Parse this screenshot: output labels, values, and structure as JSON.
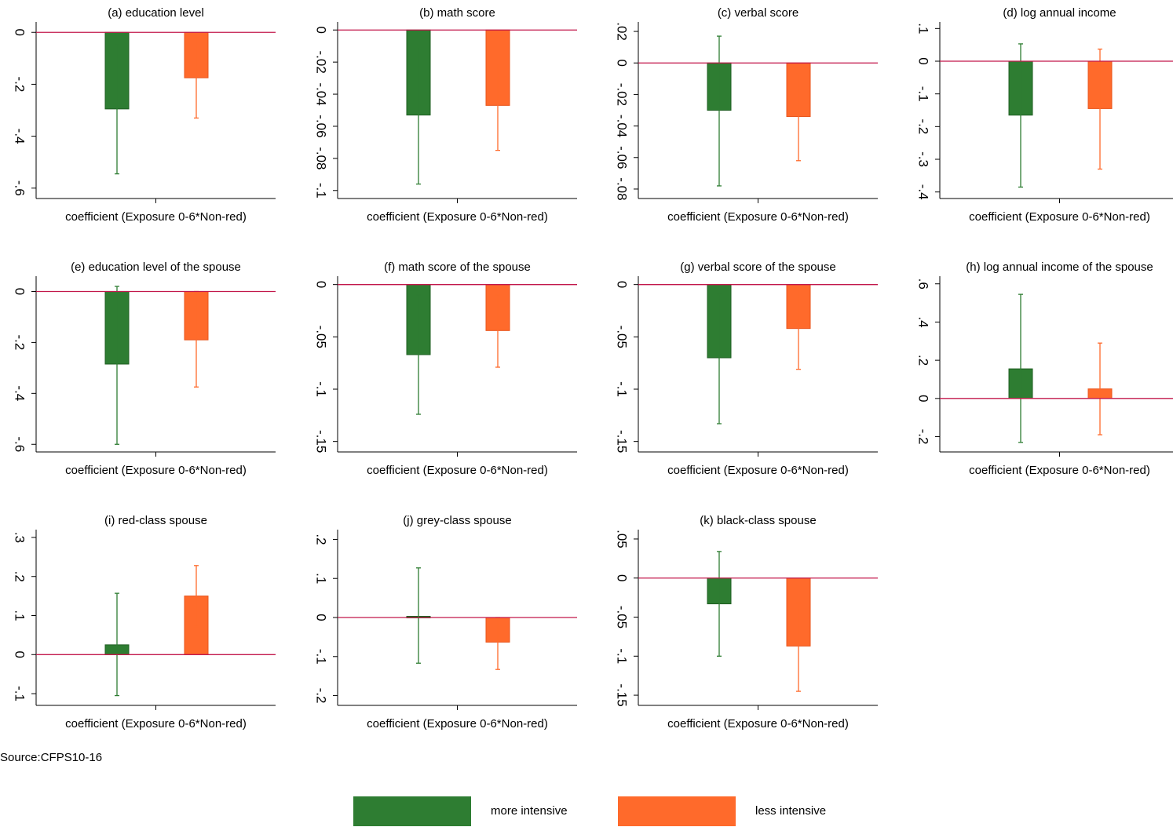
{
  "colors": {
    "more": "#2e7d32",
    "less": "#ff6a2b",
    "zero_line": "#c2184b",
    "axis": "#000000"
  },
  "source": "Source:CFPS10-16",
  "legend": {
    "more_label": "more intensive",
    "less_label": "less intensive"
  },
  "chart_data": [
    {
      "type": "bar",
      "title": "(a) education level",
      "xlabel": "coefficient (Exposure 0-6*Non-red)",
      "ylim": [
        -0.64,
        0.04
      ],
      "yticks": [
        0,
        -0.2,
        -0.4,
        -0.6
      ],
      "ytick_labels": [
        "0",
        "-.2",
        "-.4",
        "-.6"
      ],
      "series": [
        {
          "name": "more intensive",
          "value": -0.295,
          "ci": [
            -0.545,
            -0.045
          ]
        },
        {
          "name": "less intensive",
          "value": -0.175,
          "ci": [
            -0.33,
            -0.02
          ]
        }
      ]
    },
    {
      "type": "bar",
      "title": "(b) math score",
      "xlabel": "coefficient (Exposure 0-6*Non-red)",
      "ylim": [
        -0.105,
        0.005
      ],
      "yticks": [
        0,
        -0.02,
        -0.04,
        -0.06,
        -0.08,
        -0.1
      ],
      "ytick_labels": [
        "0",
        "-.02",
        "-.04",
        "-.06",
        "-.08",
        "-.1"
      ],
      "series": [
        {
          "name": "more intensive",
          "value": -0.053,
          "ci": [
            -0.096,
            -0.011
          ]
        },
        {
          "name": "less intensive",
          "value": -0.047,
          "ci": [
            -0.075,
            -0.021
          ]
        }
      ]
    },
    {
      "type": "bar",
      "title": "(c) verbal score",
      "xlabel": "coefficient (Exposure 0-6*Non-red)",
      "ylim": [
        -0.086,
        0.026
      ],
      "yticks": [
        0.02,
        0,
        -0.02,
        -0.04,
        -0.06,
        -0.08
      ],
      "ytick_labels": [
        ".02",
        "0",
        "-.02",
        "-.04",
        "-.06",
        "-.08"
      ],
      "series": [
        {
          "name": "more intensive",
          "value": -0.03,
          "ci": [
            -0.078,
            0.017
          ]
        },
        {
          "name": "less intensive",
          "value": -0.034,
          "ci": [
            -0.062,
            -0.007
          ]
        }
      ]
    },
    {
      "type": "bar",
      "title": "(d) log annual income",
      "xlabel": "coefficient (Exposure 0-6*Non-red)",
      "ylim": [
        -0.42,
        0.12
      ],
      "yticks": [
        0.1,
        0,
        -0.1,
        -0.2,
        -0.3,
        -0.4
      ],
      "ytick_labels": [
        ".1",
        "0",
        "-.1",
        "-.2",
        "-.3",
        "-.4"
      ],
      "series": [
        {
          "name": "more intensive",
          "value": -0.165,
          "ci": [
            -0.385,
            0.053
          ]
        },
        {
          "name": "less intensive",
          "value": -0.145,
          "ci": [
            -0.33,
            0.037
          ]
        }
      ]
    },
    {
      "type": "bar",
      "title": "(e) education level of the spouse",
      "xlabel": "coefficient (Exposure 0-6*Non-red)",
      "ylim": [
        -0.63,
        0.06
      ],
      "yticks": [
        0,
        -0.2,
        -0.4,
        -0.6
      ],
      "ytick_labels": [
        "0",
        "-.2",
        "-.4",
        "-.6"
      ],
      "series": [
        {
          "name": "more intensive",
          "value": -0.285,
          "ci": [
            -0.6,
            0.02
          ]
        },
        {
          "name": "less intensive",
          "value": -0.19,
          "ci": [
            -0.375,
            0.0
          ]
        }
      ]
    },
    {
      "type": "bar",
      "title": "(f) math score of the spouse",
      "xlabel": "coefficient (Exposure 0-6*Non-red)",
      "ylim": [
        -0.16,
        0.008
      ],
      "yticks": [
        0,
        -0.05,
        -0.1,
        -0.15
      ],
      "ytick_labels": [
        "0",
        "-.05",
        "-.1",
        "-.15"
      ],
      "series": [
        {
          "name": "more intensive",
          "value": -0.067,
          "ci": [
            -0.124,
            -0.01
          ]
        },
        {
          "name": "less intensive",
          "value": -0.044,
          "ci": [
            -0.079,
            -0.01
          ]
        }
      ]
    },
    {
      "type": "bar",
      "title": "(g) verbal score of the spouse",
      "xlabel": "coefficient (Exposure 0-6*Non-red)",
      "ylim": [
        -0.16,
        0.008
      ],
      "yticks": [
        0,
        -0.05,
        -0.1,
        -0.15
      ],
      "ytick_labels": [
        "0",
        "-.05",
        "-.1",
        "-.15"
      ],
      "series": [
        {
          "name": "more intensive",
          "value": -0.07,
          "ci": [
            -0.133,
            -0.009
          ]
        },
        {
          "name": "less intensive",
          "value": -0.042,
          "ci": [
            -0.081,
            -0.003
          ]
        }
      ]
    },
    {
      "type": "bar",
      "title": "(h) log annual income of the spouse",
      "xlabel": "coefficient (Exposure 0-6*Non-red)",
      "ylim": [
        -0.28,
        0.64
      ],
      "yticks": [
        0.6,
        0.4,
        0.2,
        0,
        -0.2
      ],
      "ytick_labels": [
        ".6",
        ".4",
        ".2",
        "0",
        "-.2"
      ],
      "series": [
        {
          "name": "more intensive",
          "value": 0.155,
          "ci": [
            -0.23,
            0.545
          ]
        },
        {
          "name": "less intensive",
          "value": 0.05,
          "ci": [
            -0.19,
            0.29
          ]
        }
      ]
    },
    {
      "type": "bar",
      "title": "(i) red-class spouse",
      "xlabel": "coefficient (Exposure 0-6*Non-red)",
      "ylim": [
        -0.13,
        0.32
      ],
      "yticks": [
        0.3,
        0.2,
        0.1,
        0,
        -0.1
      ],
      "ytick_labels": [
        ".3",
        ".2",
        ".1",
        "0",
        "-.1"
      ],
      "series": [
        {
          "name": "more intensive",
          "value": 0.025,
          "ci": [
            -0.105,
            0.157
          ]
        },
        {
          "name": "less intensive",
          "value": 0.15,
          "ci": [
            0.072,
            0.228
          ]
        }
      ]
    },
    {
      "type": "bar",
      "title": "(j) grey-class spouse",
      "xlabel": "coefficient (Exposure 0-6*Non-red)",
      "ylim": [
        -0.225,
        0.225
      ],
      "yticks": [
        0.2,
        0.1,
        0,
        -0.1,
        -0.2
      ],
      "ytick_labels": [
        ".2",
        ".1",
        "0",
        "-.1",
        "-.2"
      ],
      "series": [
        {
          "name": "more intensive",
          "value": 0.003,
          "ci": [
            -0.117,
            0.127
          ]
        },
        {
          "name": "less intensive",
          "value": -0.063,
          "ci": [
            -0.133,
            0.0
          ]
        }
      ]
    },
    {
      "type": "bar",
      "title": "(k) black-class spouse",
      "xlabel": "coefficient (Exposure 0-6*Non-red)",
      "ylim": [
        -0.163,
        0.062
      ],
      "yticks": [
        0.05,
        0,
        -0.05,
        -0.1,
        -0.15
      ],
      "ytick_labels": [
        ".05",
        "0",
        "-.05",
        "-.1",
        "-.15"
      ],
      "series": [
        {
          "name": "more intensive",
          "value": -0.033,
          "ci": [
            -0.1,
            0.034
          ]
        },
        {
          "name": "less intensive",
          "value": -0.087,
          "ci": [
            -0.145,
            -0.032
          ]
        }
      ]
    }
  ]
}
